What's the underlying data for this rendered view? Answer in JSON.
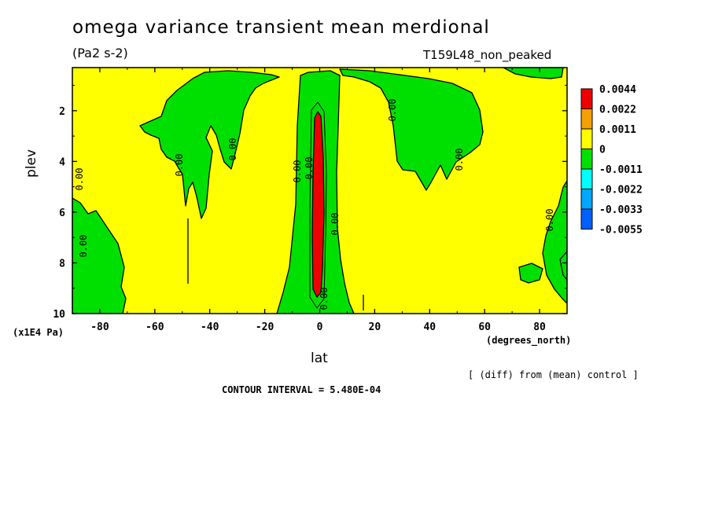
{
  "chart_data": {
    "type": "heatmap",
    "title": "omega variance transient mean merdional",
    "subtitle": "(Pa2 s-2)",
    "run_label": "T159L48_non_peaked",
    "xlabel": "lat",
    "x_units": "(degrees_north)",
    "ylabel": "plev",
    "y_units": "(x1E4 Pa)",
    "xlim": [
      -90,
      90
    ],
    "ylim": [
      10,
      0.3
    ],
    "x_ticks": [
      -80,
      -60,
      -40,
      -20,
      0,
      20,
      40,
      60,
      80
    ],
    "y_ticks": [
      2,
      4,
      6,
      8,
      10
    ],
    "colorbar": {
      "levels": [
        "0.0044",
        "0.0022",
        "0.0011",
        "0",
        "-0.0011",
        "-0.0022",
        "-0.0033",
        "-0.0055"
      ],
      "colors": [
        "#ee0000",
        "#f3a000",
        "#ffff00",
        "#00e000",
        "#00ffff",
        "#00a6ff",
        "#0060ff"
      ]
    },
    "contour_labels": [
      "0.00",
      "0.00",
      "0.00",
      "0.00",
      "0.00",
      "0.00",
      "0.00",
      "0.00",
      "0.00",
      "0.00",
      "0.00"
    ],
    "footer_note": "[ (diff) from (mean) control ]",
    "contour_interval": "CONTOUR INTERVAL = 5.480E-04"
  }
}
